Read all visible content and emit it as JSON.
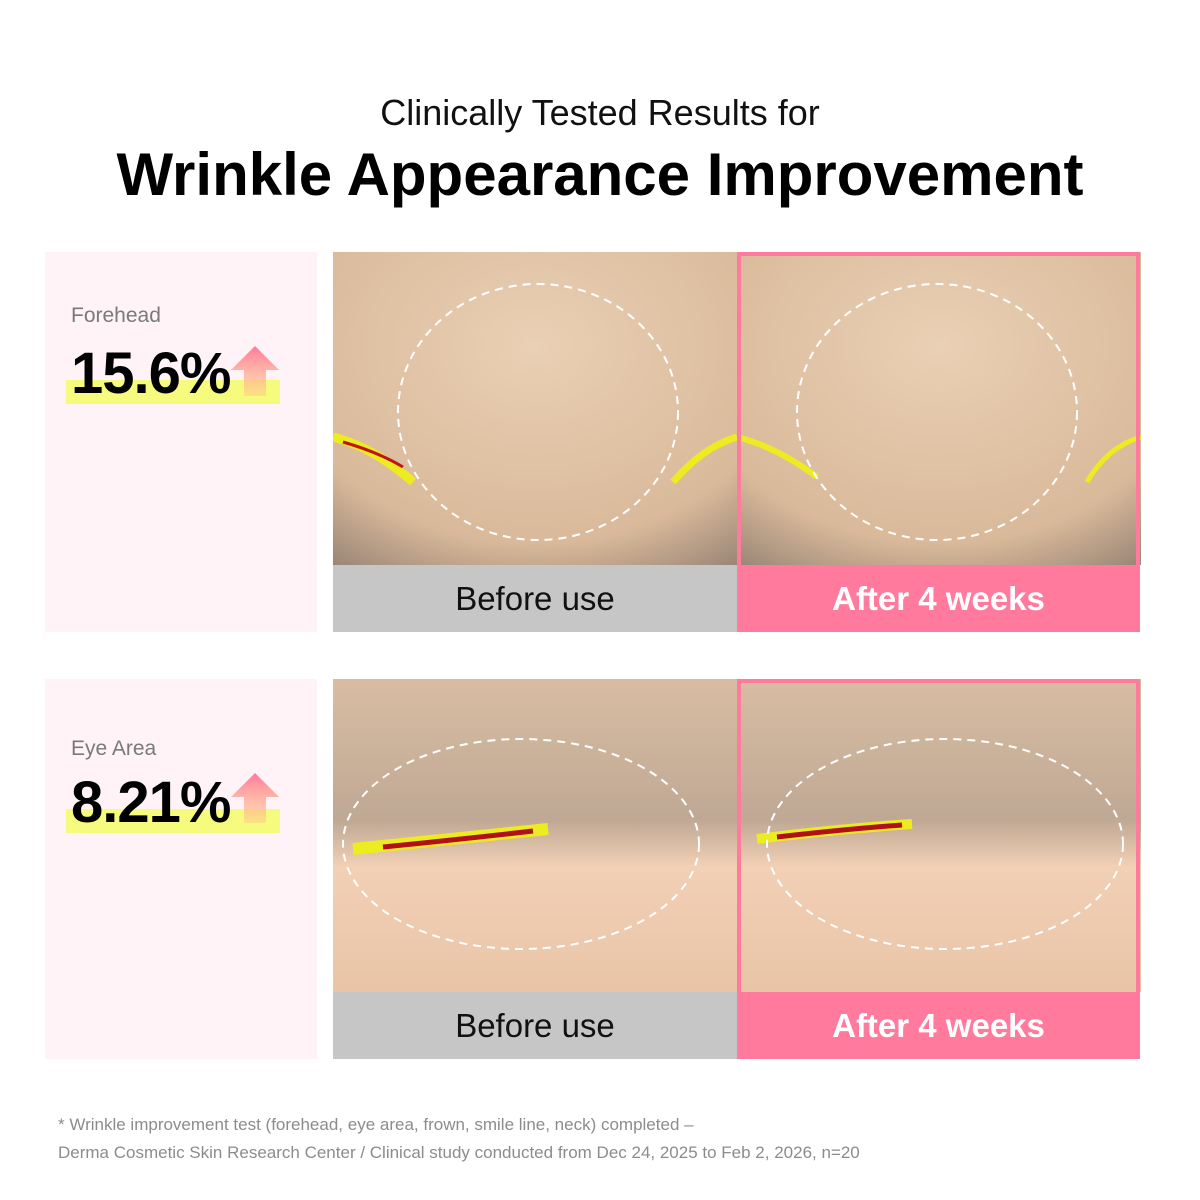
{
  "header": {
    "subtitle": "Clinically Tested Results for",
    "title": "Wrinkle Appearance Improvement"
  },
  "rows": [
    {
      "area": "Forehead",
      "value": "15.6%",
      "trend": "up",
      "before_label": "Before use",
      "after_label": "After 4 weeks"
    },
    {
      "area": "Eye Area",
      "value": "8.21%",
      "trend": "up",
      "before_label": "Before use",
      "after_label": "After 4 weeks"
    }
  ],
  "footnote": {
    "line1": "* Wrinkle improvement test (forehead, eye area, frown, smile line, neck) completed –",
    "line2": "Derma Cosmetic Skin Research Center / Clinical study conducted from Dec 24, 2025 to Feb 2, 2026, n=20"
  },
  "colors": {
    "accent": "#ff7a9c",
    "highlight": "#f7fb7d",
    "panel": "#fff3f7",
    "before_bar": "#c6c6c6"
  }
}
